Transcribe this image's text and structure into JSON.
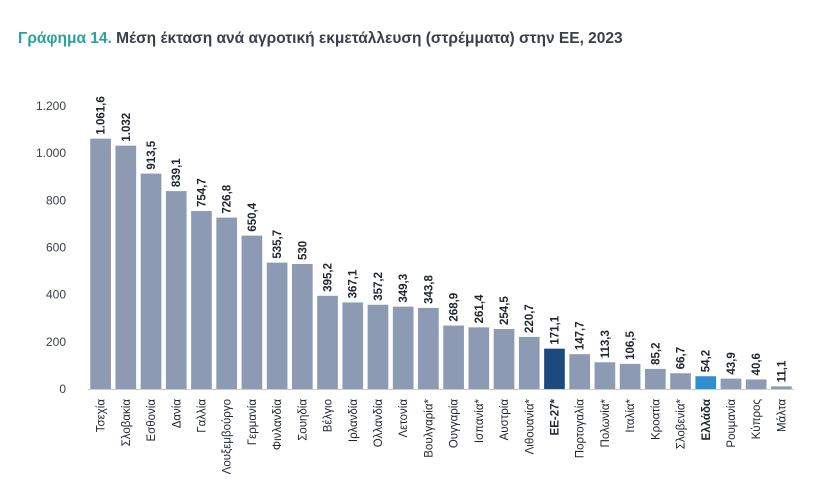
{
  "title": {
    "prefix": "Γράφημα 14.",
    "text": "Μέση έκταση ανά αγροτική εκμετάλλευση (στρέμματα) στην ΕΕ, 2023"
  },
  "colors": {
    "bar": "#8c9bb3",
    "highlight_eu": "#1c4a7f",
    "highlight_greece": "#2f8fce",
    "title_prefix": "#2aa39b",
    "title_text": "#3a3f4b",
    "axis_text": "#3a3f4b",
    "gridline": "#e3e6ec"
  },
  "chart_data": {
    "type": "bar",
    "title": "Μέση έκταση ανά αγροτική εκμετάλλευση (στρέμματα) στην ΕΕ, 2023",
    "xlabel": "",
    "ylabel": "",
    "ylim": [
      0,
      1200
    ],
    "yticks": [
      0,
      200,
      400,
      600,
      800,
      1000,
      1200
    ],
    "ytick_labels": [
      "0",
      "200",
      "400",
      "600",
      "800",
      "1.000",
      "1.200"
    ],
    "grid": false,
    "categories": [
      "Τσεχία",
      "Σλοβακία",
      "Εσθονία",
      "Δανία",
      "Γαλλία",
      "Λουξεμβούργο",
      "Γερμανία",
      "Φινλανδία",
      "Σουηδία",
      "Βέλγιο",
      "Ιρλανδία",
      "Ολλανδία",
      "Λετονία",
      "Βουλγαρία*",
      "Ουγγαρία",
      "Ισπανία*",
      "Αυστρία",
      "Λιθουανία*",
      "ΕΕ-27*",
      "Πορτογαλία",
      "Πολωνία*",
      "Ιταλία*",
      "Κροατία",
      "Σλοβενία*",
      "Ελλάδα",
      "Ρουμανία",
      "Κύπρος",
      "Μάλτα"
    ],
    "values": [
      1061.6,
      1032,
      913.5,
      839.1,
      754.7,
      726.8,
      650.4,
      535.7,
      530,
      395.2,
      367.1,
      357.2,
      349.3,
      343.8,
      268.9,
      261.4,
      254.5,
      220.7,
      171.1,
      147.7,
      113.3,
      106.5,
      85.2,
      66.7,
      54.2,
      43.9,
      40.6,
      11.1
    ],
    "value_labels": [
      "1.061,6",
      "1.032",
      "913,5",
      "839,1",
      "754,7",
      "726,8",
      "650,4",
      "535,7",
      "530",
      "395,2",
      "367,1",
      "357,2",
      "349,3",
      "343,8",
      "268,9",
      "261,4",
      "254,5",
      "220,7",
      "171,1",
      "147,7",
      "113,3",
      "106,5",
      "85,2",
      "66,7",
      "54,2",
      "43,9",
      "40,6",
      "11,1"
    ],
    "highlight": {
      "ΕΕ-27*": "highlight_eu",
      "Ελλάδα": "highlight_greece"
    },
    "bold_categories": [
      "ΕΕ-27*",
      "Ελλάδα"
    ]
  }
}
